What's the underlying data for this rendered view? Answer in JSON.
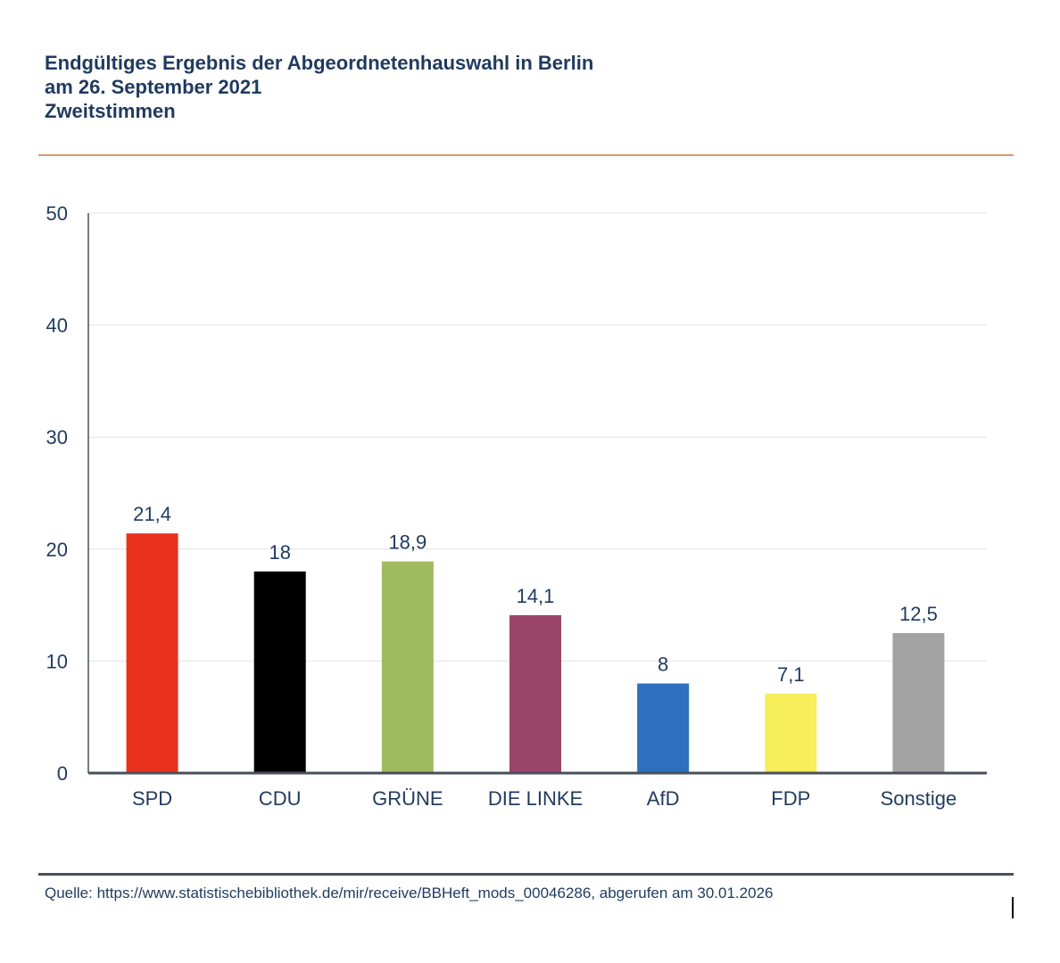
{
  "title": {
    "line1": "Endgültiges Ergebnis der Abgeordnetenhauswahl in Berlin",
    "line2": "am 26. September 2021",
    "line3": "Zweitstimmen"
  },
  "source": "Quelle: https://www.statistischebibliothek.de/mir/receive/BBHeft_mods_00046286, abgerufen am 30.01.2026",
  "chart_data": {
    "type": "bar",
    "title": "Endgültiges Ergebnis der Abgeordnetenhauswahl in Berlin am 26. September 2021 Zweitstimmen",
    "xlabel": "",
    "ylabel": "",
    "ylim": [
      0,
      50
    ],
    "yticks": [
      0,
      10,
      20,
      30,
      40,
      50
    ],
    "ytick_labels": [
      "0",
      "10",
      "20",
      "30",
      "40",
      "50"
    ],
    "grid": true,
    "legend": "none",
    "categories": [
      "SPD",
      "CDU",
      "GRÜNE",
      "DIE LINKE",
      "AfD",
      "FDP",
      "Sonstige"
    ],
    "values": [
      21.4,
      18,
      18.9,
      14.1,
      8,
      7.1,
      12.5
    ],
    "value_labels": [
      "21,4",
      "18",
      "18,9",
      "14,1",
      "8",
      "7,1",
      "12,5"
    ],
    "colors": [
      "#e8321e",
      "#000000",
      "#9fbb5f",
      "#9b456b",
      "#2f6fbf",
      "#f6ee5a",
      "#a3a3a3"
    ]
  }
}
